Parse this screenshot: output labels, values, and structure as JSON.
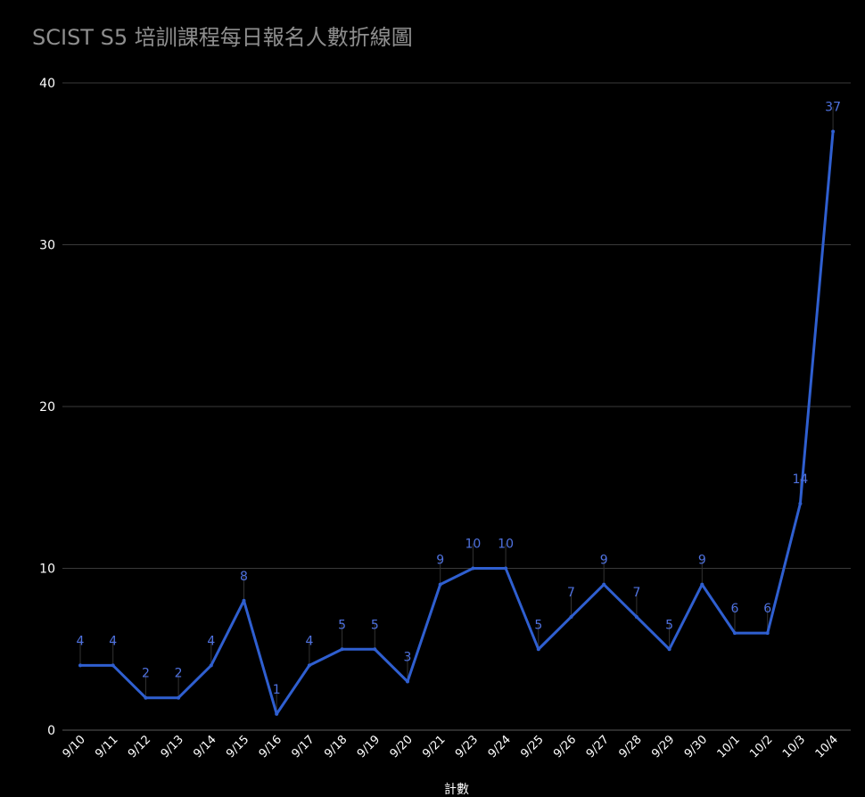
{
  "chart_data": {
    "type": "line",
    "title": "SCIST S5 培訓課程每日報名人數折線圖",
    "xlabel": "計數",
    "ylabel": "",
    "ylim": [
      0,
      40
    ],
    "yticks": [
      0,
      10,
      20,
      30,
      40
    ],
    "grid": true,
    "categories": [
      "9/10",
      "9/11",
      "9/12",
      "9/13",
      "9/14",
      "9/15",
      "9/16",
      "9/17",
      "9/18",
      "9/19",
      "9/20",
      "9/21",
      "9/23",
      "9/24",
      "9/25",
      "9/26",
      "9/27",
      "9/28",
      "9/29",
      "9/30",
      "10/1",
      "10/2",
      "10/3",
      "10/4"
    ],
    "series": [
      {
        "values": [
          4,
          4,
          2,
          2,
          4,
          8,
          1,
          4,
          5,
          5,
          3,
          9,
          10,
          10,
          5,
          7,
          9,
          7,
          5,
          9,
          6,
          6,
          14,
          37
        ],
        "color": "#2f5fd0"
      }
    ]
  }
}
